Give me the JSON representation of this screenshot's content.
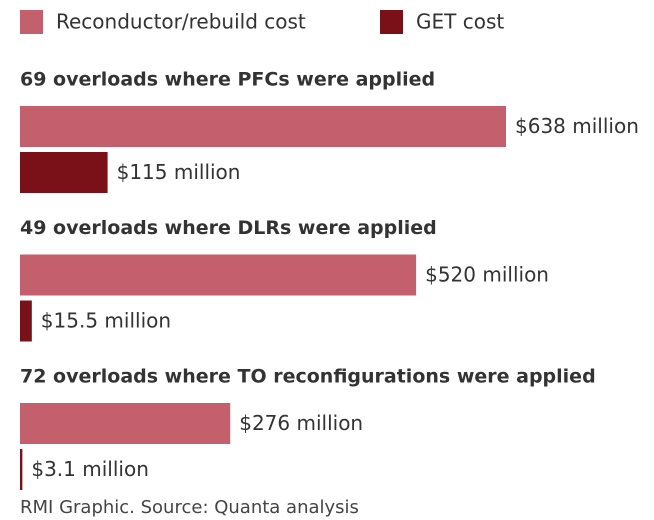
{
  "chart_data": {
    "type": "bar",
    "orientation": "horizontal",
    "categories": [
      "69 overloads where PFCs were applied",
      "49 overloads where DLRs were applied",
      "72 overloads where TO reconfigurations were applied"
    ],
    "series": [
      {
        "name": "Reconductor/rebuild cost",
        "color": "#c4606e",
        "values": [
          638,
          520,
          276
        ],
        "value_labels": [
          "$638 million",
          "$520 million",
          "$276 million"
        ]
      },
      {
        "name": "GET cost",
        "color": "#7a1018",
        "values": [
          115,
          15.5,
          3.1
        ],
        "value_labels": [
          "$115 million",
          "$15.5 million",
          "$3.1 million"
        ]
      }
    ],
    "source": "RMI Graphic. Source: Quanta analysis"
  }
}
